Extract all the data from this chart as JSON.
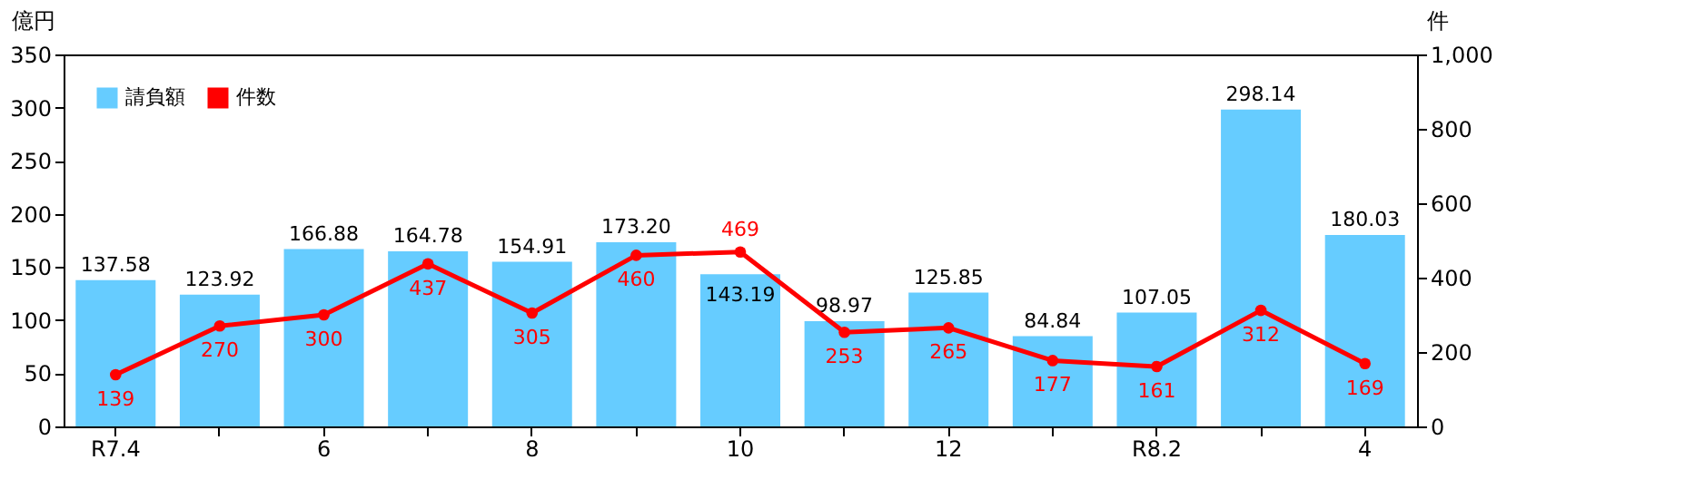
{
  "chart_data": {
    "type": "bar",
    "ylabel": "億円",
    "y2label": "件",
    "categories": [
      "R7.4",
      null,
      "6",
      null,
      "8",
      null,
      "10",
      null,
      "12",
      null,
      "R8.2",
      null,
      "4"
    ],
    "series": [
      {
        "name": "請負額",
        "color": "#66ccff",
        "values": [
          137.58,
          123.92,
          166.88,
          164.78,
          154.91,
          173.2,
          143.19,
          98.97,
          125.85,
          84.84,
          107.05,
          298.14,
          180.03
        ],
        "value_labels": [
          "137.58",
          "123.92",
          "166.88",
          "164.78",
          "154.91",
          "173.20",
          "143.19",
          "98.97",
          "125.85",
          "84.84",
          "107.05",
          "298.14",
          "180.03"
        ]
      },
      {
        "name": "件数",
        "type": "line",
        "axis": "y2",
        "color": "#ff0000",
        "values": [
          139,
          270,
          300,
          437,
          305,
          460,
          469,
          253,
          265,
          177,
          161,
          312,
          169
        ],
        "value_labels": [
          "139",
          "270",
          "300",
          "437",
          "305",
          "460",
          "469",
          "253",
          "265",
          "177",
          "161",
          "312",
          "169"
        ]
      }
    ],
    "ylim": [
      0,
      350
    ],
    "yticks": [
      0,
      50,
      100,
      150,
      200,
      250,
      300,
      350
    ],
    "y2lim": [
      0,
      1000
    ],
    "y2ticks": [
      0,
      200,
      400,
      600,
      800,
      {
        "value": 1000,
        "label": "1,000"
      }
    ],
    "legend": "top left",
    "grid": false,
    "marker": "circle"
  }
}
